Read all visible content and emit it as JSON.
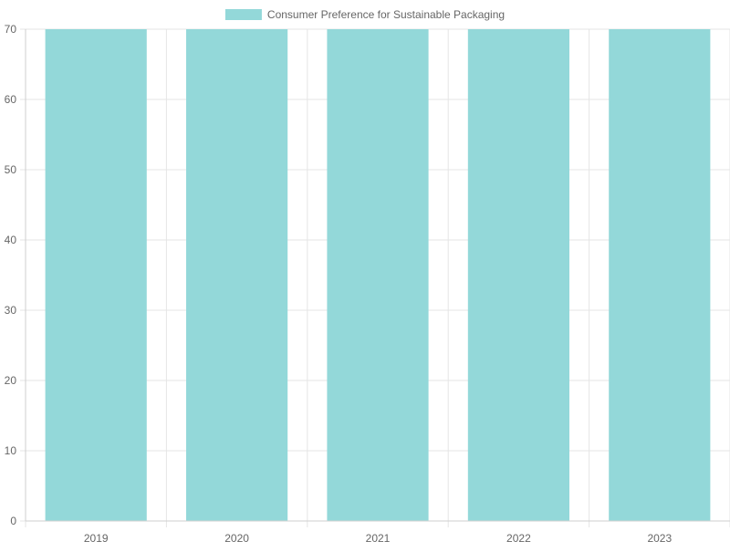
{
  "chart_data": {
    "type": "bar",
    "title": "",
    "xlabel": "",
    "ylabel": "",
    "categories": [
      "2019",
      "2020",
      "2021",
      "2022",
      "2023"
    ],
    "series": [
      {
        "name": "Consumer Preference for Sustainable Packaging",
        "values": [
          70,
          70,
          70,
          70,
          70
        ],
        "color": "#93d8d9"
      }
    ],
    "ylim": [
      0,
      70
    ],
    "yticks": [
      0,
      10,
      20,
      30,
      40,
      50,
      60,
      70
    ],
    "grid": true,
    "legend_position": "top-center"
  },
  "colors": {
    "grid": "#e5e5e5",
    "axis": "#cfcfcf",
    "tick_text": "#666666",
    "legend_text": "#666666"
  }
}
